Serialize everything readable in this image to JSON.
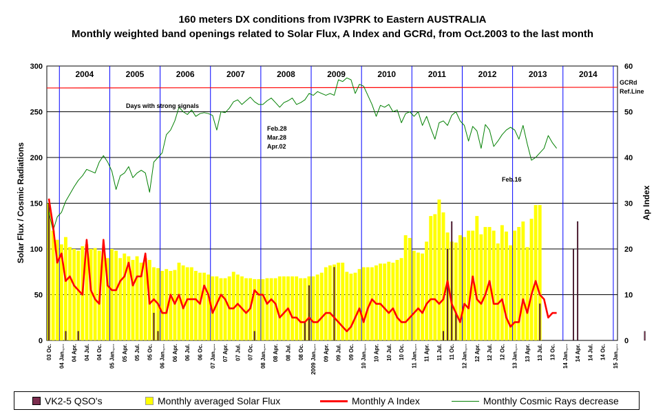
{
  "chart_data": {
    "type": "bar+line",
    "title": "160 meters DX conditions from IV3PRK to Eastern AUSTRALIA",
    "subtitle": "Monthly weighted band openings related to Solar Flux, A Index and GCRd, from Oct.2003 to the last month",
    "ylabel_left": "Solar Flux / Cosmic Radiations",
    "ylabel_right": "Ap Index",
    "ylim_left": [
      0,
      300
    ],
    "ylim_right": [
      0,
      60
    ],
    "yticks_left": [
      "0",
      "50",
      "100",
      "150",
      "200",
      "250",
      "300"
    ],
    "yticks_right": [
      "0",
      "10",
      "20",
      "30",
      "40",
      "50",
      "60"
    ],
    "grid": true,
    "start_month": "2003-10",
    "n_months": 136,
    "years": [
      "2004",
      "2005",
      "2006",
      "2007",
      "2008",
      "2009",
      "2010",
      "2011",
      "2012",
      "2013",
      "2014"
    ],
    "x_tick_labels": [
      "03 Oc.",
      "04 Jan.,...",
      "04 Apr.",
      "04 Jul.",
      "04 Oc.",
      "05 Jan.,...",
      "05 Apr.",
      "05 Jul.",
      "05 Oc.",
      "06 Jan.,...",
      "06 Apr.",
      "06 Jul.",
      "06 Oc.",
      "07 Jan.,...",
      "07 Apr.",
      "07 Jul.",
      "07 Oc.",
      "08 Jan.,...",
      "08 Apr.",
      "08 Jul.",
      "08 Oc.",
      "2009 Jan.,...",
      "09 Apr.",
      "09 Jul.",
      "09 Oc.",
      "10 Jan.,...",
      "10 Apr.",
      "10 Jul.",
      "10 Oc.",
      "11 Jan.,...",
      "11 Apr.",
      "11 Jul.",
      "11 Oc.",
      "12 Jan.,...",
      "12 Apr.",
      "12 Jul.",
      "12 Oc.",
      "13 Jan.,...",
      "13 Apr.",
      "13 Jul.",
      "13 Oc.",
      "14 Jan.,...",
      "14 Apr.",
      "14 Jul.",
      "14 Oc.",
      "15 Jan.,..."
    ],
    "annotations": [
      "Days with strong signals",
      "Feb.28",
      "Mar.28",
      "Apr.02",
      "Feb.16"
    ],
    "ref_line": {
      "label": "GCRd Ref.Line",
      "value": 276
    },
    "series": [
      {
        "name": "VK2-5 QSO's",
        "axis": "left",
        "type": "bar",
        "color": "#7b2d4e",
        "points": [
          [
            0,
            150
          ],
          [
            4,
            10
          ],
          [
            7,
            10
          ],
          [
            25,
            30
          ],
          [
            26,
            10
          ],
          [
            49,
            10
          ],
          [
            61,
            20
          ],
          [
            62,
            30
          ],
          [
            62,
            60
          ],
          [
            68,
            80
          ],
          [
            94,
            10
          ],
          [
            95,
            100
          ],
          [
            96,
            130
          ],
          [
            97,
            30
          ],
          [
            117,
            40
          ],
          [
            125,
            100
          ],
          [
            126,
            130
          ],
          [
            142,
            10
          ],
          [
            149,
            150
          ],
          [
            150,
            170
          ],
          [
            151,
            60
          ],
          [
            152,
            20
          ],
          [
            159,
            20
          ],
          [
            164,
            40
          ],
          [
            165,
            20
          ],
          [
            169,
            10
          ],
          [
            173,
            20
          ],
          [
            174,
            10
          ],
          [
            178,
            10
          ],
          [
            180,
            120
          ],
          [
            187,
            10
          ],
          [
            188,
            20
          ]
        ]
      },
      {
        "name": "Monthly averaged Solar Flux",
        "axis": "left",
        "type": "bar",
        "color": "#ffff00",
        "values": [
          150,
          120,
          110,
          105,
          113,
          102,
          100,
          98,
          103,
          105,
          100,
          101,
          98,
          97,
          90,
          100,
          98,
          90,
          95,
          92,
          88,
          92,
          85,
          90,
          88,
          80,
          79,
          76,
          78,
          76,
          77,
          85,
          82,
          80,
          80,
          76,
          74,
          74,
          72,
          70,
          70,
          68,
          68,
          70,
          75,
          72,
          70,
          68,
          68,
          67,
          67,
          67,
          68,
          68,
          68,
          70,
          70,
          70,
          70,
          70,
          68,
          68,
          70,
          70,
          72,
          74,
          80,
          82,
          83,
          85,
          85,
          75,
          73,
          74,
          78,
          80,
          80,
          80,
          82,
          84,
          84,
          86,
          85,
          88,
          90,
          115,
          112,
          98,
          96,
          95,
          108,
          136,
          138,
          154,
          140,
          118,
          108,
          107,
          115,
          113,
          120,
          120,
          136,
          116,
          124,
          124,
          120,
          106,
          126,
          119,
          104,
          120,
          124,
          130,
          102,
          133,
          148,
          148,
          null,
          null,
          null,
          null,
          null,
          null,
          null,
          null,
          null,
          null,
          null,
          null,
          null,
          null,
          null,
          null,
          null,
          null
        ]
      },
      {
        "name": "Monthly A Index",
        "axis": "right",
        "type": "line",
        "color": "#ff0000",
        "values": [
          31,
          25,
          17,
          19,
          13,
          14,
          12,
          11,
          10,
          22,
          11,
          9,
          8,
          22,
          12,
          11,
          11,
          13,
          14,
          17,
          12,
          14,
          14,
          19,
          8,
          9,
          8,
          6,
          6,
          10,
          8,
          10,
          7,
          9,
          9,
          9,
          8,
          12,
          10,
          6,
          8,
          10,
          9,
          7,
          7,
          8,
          7,
          6,
          7,
          11,
          10,
          10,
          8,
          9,
          8,
          5,
          6,
          7,
          5,
          5,
          4,
          4,
          5,
          4,
          4,
          5,
          6,
          6,
          5,
          4,
          3,
          2,
          3,
          5,
          7,
          4,
          7,
          9,
          8,
          8,
          7,
          6,
          7,
          5,
          4,
          4,
          5,
          6,
          7,
          6,
          8,
          9,
          9,
          8,
          9,
          13,
          8,
          6,
          4,
          8,
          7,
          14,
          9,
          8,
          10,
          13,
          8,
          8,
          9,
          5,
          3,
          4,
          4,
          9,
          6,
          10,
          13,
          10,
          9,
          5,
          6,
          6,
          null,
          null,
          null,
          null,
          null,
          null,
          null,
          null,
          null,
          null,
          null,
          null,
          null,
          null
        ]
      },
      {
        "name": "Monthly Cosmic Rays decrease",
        "axis": "left",
        "type": "line",
        "color": "#007f00",
        "values": [
          140,
          120,
          135,
          140,
          152,
          160,
          168,
          175,
          180,
          187,
          185,
          183,
          195,
          202,
          195,
          185,
          165,
          180,
          183,
          190,
          178,
          183,
          186,
          183,
          162,
          195,
          200,
          205,
          225,
          230,
          240,
          255,
          250,
          247,
          252,
          245,
          248,
          249,
          248,
          246,
          230,
          250,
          249,
          254,
          261,
          263,
          258,
          262,
          266,
          261,
          258,
          258,
          262,
          265,
          260,
          255,
          260,
          262,
          265,
          258,
          260,
          263,
          270,
          268,
          272,
          270,
          268,
          270,
          268,
          285,
          283,
          287,
          285,
          270,
          280,
          278,
          268,
          258,
          245,
          257,
          255,
          258,
          250,
          252,
          238,
          248,
          250,
          245,
          250,
          235,
          245,
          232,
          220,
          238,
          240,
          235,
          246,
          250,
          240,
          235,
          218,
          234,
          229,
          210,
          236,
          230,
          212,
          218,
          225,
          230,
          233,
          230,
          220,
          235,
          215,
          197,
          200,
          205,
          210,
          224,
          216,
          210,
          null,
          null,
          null,
          null,
          null,
          null,
          null,
          null,
          null,
          null,
          null,
          null,
          null,
          null
        ]
      }
    ],
    "legend": [
      "VK2-5 QSO's",
      "Monthly averaged Solar Flux",
      "Monthly A Index",
      "Monthly Cosmic Rays decrease"
    ]
  }
}
